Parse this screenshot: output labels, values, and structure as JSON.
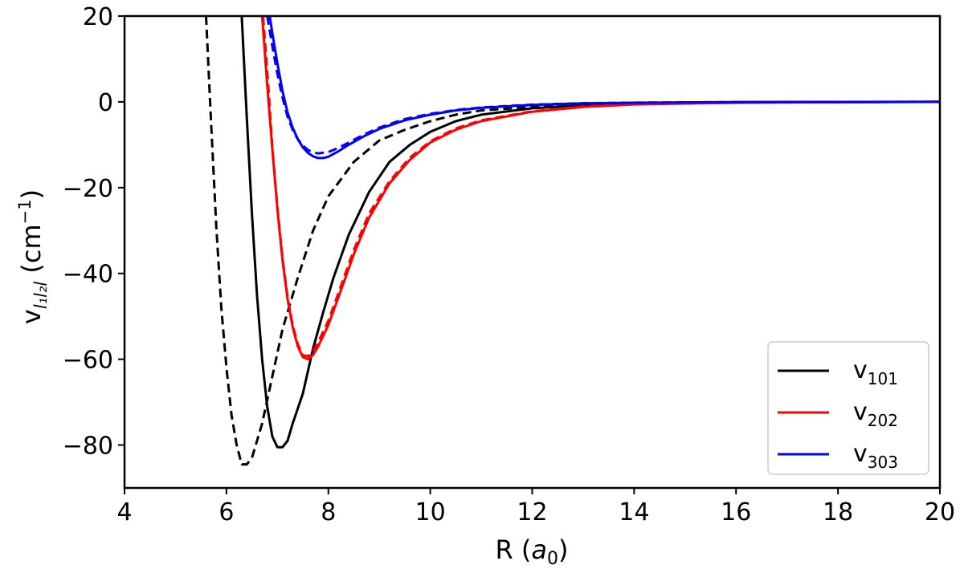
{
  "chart_data": {
    "type": "line",
    "xlabel": {
      "main": "R (",
      "italic": "a",
      "sub": "0",
      "close": ")"
    },
    "ylabel": {
      "main": "v",
      "sub": "l₁l₂l",
      "paren": " (cm",
      "sup": "−1",
      "close": ")"
    },
    "xlim": [
      4,
      20
    ],
    "ylim": [
      -90,
      20
    ],
    "xticks": [
      4,
      6,
      8,
      10,
      12,
      14,
      16,
      18,
      20
    ],
    "yticks": [
      20,
      0,
      -20,
      -40,
      -60,
      -80
    ],
    "xtick_labels": [
      "4",
      "6",
      "8",
      "10",
      "12",
      "14",
      "16",
      "18",
      "20"
    ],
    "ytick_labels": [
      "20",
      "0",
      "−20",
      "−40",
      "−60",
      "−80"
    ],
    "grid": false,
    "legend": {
      "placement": "lower-right",
      "entries": [
        {
          "base": "v",
          "sub": "101",
          "color": "#000000"
        },
        {
          "base": "v",
          "sub": "202",
          "color": "#ff0000"
        },
        {
          "base": "v",
          "sub": "303",
          "color": "#0000ff"
        }
      ]
    },
    "series": [
      {
        "name": "v101",
        "color": "#000000",
        "dash": false,
        "x": [
          6.3,
          6.4,
          6.5,
          6.6,
          6.7,
          6.8,
          6.9,
          7.0,
          7.1,
          7.2,
          7.3,
          7.5,
          7.7,
          7.9,
          8.1,
          8.4,
          8.8,
          9.2,
          9.6,
          10.0,
          10.5,
          11.0,
          12.0,
          13.0,
          14.0,
          16.0,
          18.0,
          20.0
        ],
        "y": [
          20,
          -4,
          -26,
          -45,
          -60,
          -71,
          -78,
          -80.5,
          -80.5,
          -79,
          -75,
          -68,
          -57.5,
          -49,
          -41,
          -31,
          -21,
          -14,
          -10,
          -7,
          -4.5,
          -3,
          -1.5,
          -0.8,
          -0.4,
          -0.1,
          -0.05,
          0
        ]
      },
      {
        "name": "v101 (dashed)",
        "color": "#000000",
        "dash": true,
        "x": [
          5.6,
          5.7,
          5.8,
          5.9,
          6.0,
          6.1,
          6.2,
          6.3,
          6.4,
          6.5,
          6.7,
          6.9,
          7.1,
          7.4,
          7.7,
          8.0,
          8.5,
          9.0,
          9.5,
          10.0,
          10.5,
          11.0,
          12.0,
          13.0,
          14.0,
          16.0,
          18.0,
          20.0
        ],
        "y": [
          20,
          -5,
          -29,
          -48,
          -62,
          -73,
          -80,
          -84.5,
          -84.5,
          -83,
          -75,
          -64,
          -53,
          -41,
          -30,
          -22,
          -14,
          -9,
          -6.5,
          -4.5,
          -3,
          -2,
          -1.2,
          -0.6,
          -0.3,
          -0.1,
          -0.05,
          0
        ]
      },
      {
        "name": "v202",
        "color": "#ff0000",
        "dash": false,
        "x": [
          6.7,
          6.75,
          6.8,
          6.9,
          7.0,
          7.1,
          7.2,
          7.3,
          7.4,
          7.5,
          7.6,
          7.7,
          7.8,
          8.0,
          8.2,
          8.5,
          8.8,
          9.2,
          9.6,
          10.0,
          10.5,
          11.0,
          12.0,
          13.0,
          14.0,
          16.0,
          18.0,
          20.0
        ],
        "y": [
          20,
          12,
          4,
          -11,
          -25,
          -37,
          -46,
          -52.5,
          -57,
          -59.5,
          -60,
          -59,
          -57,
          -52,
          -45.5,
          -35.5,
          -27,
          -19,
          -13.5,
          -9.5,
          -6.5,
          -4.5,
          -2.3,
          -1.2,
          -0.6,
          -0.2,
          -0.05,
          0
        ]
      },
      {
        "name": "v202 (dashed)",
        "color": "#ff0000",
        "dash": true,
        "x": [
          6.72,
          6.77,
          6.82,
          6.9,
          7.0,
          7.1,
          7.2,
          7.3,
          7.4,
          7.5,
          7.6,
          7.7,
          7.8,
          8.0,
          8.2,
          8.5,
          8.8,
          9.2,
          9.6,
          10.0,
          10.5,
          11.0,
          12.0,
          13.0,
          14.0,
          16.0,
          18.0,
          20.0
        ],
        "y": [
          20,
          12,
          4,
          -10.5,
          -24.5,
          -36.5,
          -45.5,
          -52,
          -56.5,
          -59,
          -59.3,
          -58.2,
          -56,
          -51,
          -44.5,
          -34.5,
          -26,
          -18.5,
          -13,
          -9.2,
          -6.2,
          -4.3,
          -2.2,
          -1.1,
          -0.5,
          -0.2,
          -0.05,
          0
        ]
      },
      {
        "name": "v303",
        "color": "#0000ff",
        "dash": false,
        "x": [
          6.85,
          6.9,
          7.0,
          7.1,
          7.2,
          7.3,
          7.4,
          7.5,
          7.6,
          7.7,
          7.8,
          7.9,
          8.0,
          8.2,
          8.4,
          8.7,
          9.0,
          9.5,
          10.0,
          10.5,
          11.0,
          12.0,
          13.0,
          14.0,
          16.0,
          18.0,
          20.0
        ],
        "y": [
          20,
          16,
          9,
          2.5,
          -2.5,
          -6,
          -8.7,
          -10.6,
          -11.9,
          -12.7,
          -13.1,
          -13.1,
          -12.8,
          -11.5,
          -10,
          -8,
          -6.3,
          -4.3,
          -3,
          -2,
          -1.4,
          -0.7,
          -0.35,
          -0.2,
          -0.05,
          -0.02,
          0
        ]
      },
      {
        "name": "v303 (dashed)",
        "color": "#0000ff",
        "dash": true,
        "x": [
          6.8,
          6.9,
          7.0,
          7.1,
          7.2,
          7.3,
          7.4,
          7.5,
          7.6,
          7.7,
          7.8,
          8.0,
          8.2,
          8.4,
          8.7,
          9.0,
          9.5,
          10.0,
          10.5,
          11.0,
          12.0,
          13.0,
          14.0,
          16.0,
          18.0,
          20.0
        ],
        "y": [
          20,
          13,
          6.5,
          1,
          -3.5,
          -6.5,
          -8.7,
          -10.2,
          -11.2,
          -11.8,
          -12,
          -11.7,
          -10.7,
          -9.5,
          -7.6,
          -6,
          -4,
          -2.8,
          -1.9,
          -1.3,
          -0.65,
          -0.32,
          -0.18,
          -0.05,
          -0.02,
          0
        ]
      }
    ]
  }
}
